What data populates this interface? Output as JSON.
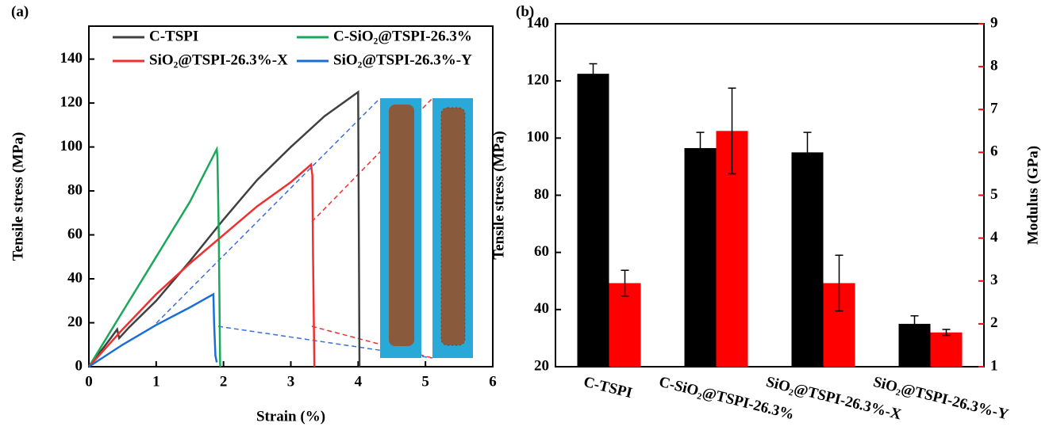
{
  "chart_data": [
    {
      "type": "line",
      "panel_label": "(a)",
      "x_label": "Strain (%)",
      "y_label": "Tensile stress (MPa)",
      "xlim": [
        0,
        6
      ],
      "ylim": [
        0,
        155
      ],
      "xticks": [
        0,
        1,
        2,
        3,
        4,
        5,
        6
      ],
      "yticks": [
        0,
        20,
        40,
        60,
        80,
        100,
        120,
        140
      ],
      "series": [
        {
          "name": "C-TSPI",
          "color": "#404040",
          "x": [
            0,
            0.3,
            0.42,
            0.45,
            0.6,
            1,
            1.5,
            2,
            2.5,
            3,
            3.5,
            4,
            4.02
          ],
          "values": [
            0,
            12,
            17,
            13,
            18,
            30,
            48,
            67,
            85,
            100,
            114,
            125,
            0
          ]
        },
        {
          "name": "C-SiO₂@TSPI-26.3%",
          "color": "#1aa85a",
          "x": [
            0,
            0.5,
            1,
            1.5,
            1.9,
            1.91,
            1.93,
            1.95
          ],
          "values": [
            0,
            25,
            50,
            75,
            99,
            95,
            60,
            0
          ]
        },
        {
          "name": "SiO₂@TSPI-26.3%-X",
          "color": "#f03030",
          "x": [
            0,
            0.5,
            1,
            1.5,
            2,
            2.5,
            3,
            3.3,
            3.32,
            3.33,
            3.35
          ],
          "values": [
            0,
            17,
            33,
            47,
            60,
            73,
            84,
            92,
            87,
            50,
            0
          ]
        },
        {
          "name": "SiO₂@TSPI-26.3%-Y",
          "color": "#1a6fd6",
          "x": [
            0,
            0.5,
            1,
            1.5,
            1.85,
            1.86,
            1.88,
            1.9
          ],
          "values": [
            0,
            10,
            19,
            27,
            33,
            20,
            5,
            2
          ]
        }
      ]
    },
    {
      "type": "bar",
      "panel_label": "(b)",
      "y_label": "Tensile stress (MPa)",
      "y2_label": "Modulus (GPa)",
      "categories": [
        "C-TSPI",
        "C-SiO₂@TSPI-26.3%",
        "SiO₂@TSPI-26.3%-X",
        "SiO₂@TSPI-26.3%-Y"
      ],
      "ylim": [
        20,
        140
      ],
      "yticks": [
        20,
        40,
        60,
        80,
        100,
        120,
        140
      ],
      "y2lim": [
        1,
        9
      ],
      "y2ticks": [
        1,
        2,
        3,
        4,
        5,
        6,
        7,
        8,
        9
      ],
      "series": [
        {
          "color": "#000000",
          "values": [
            122.5,
            96.5,
            95,
            35
          ],
          "errors": [
            3.5,
            5.5,
            7,
            2.8
          ]
        },
        {
          "color": "#ff0000",
          "axis": "y2",
          "values": [
            2.95,
            6.5,
            2.95,
            1.8
          ],
          "errors": [
            0.3,
            1.0,
            0.65,
            0.07
          ]
        }
      ]
    }
  ]
}
